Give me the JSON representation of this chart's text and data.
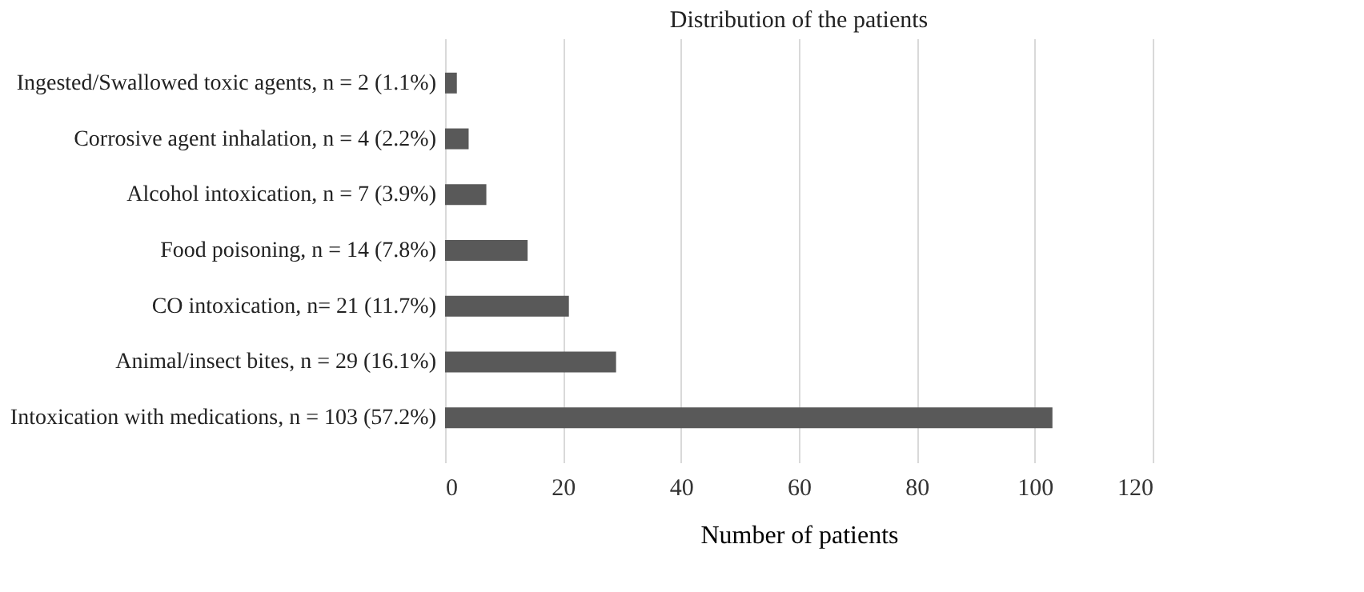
{
  "chart_data": {
    "type": "bar",
    "orientation": "horizontal",
    "title": "Distribution of the patients",
    "xlabel": "Number of patients",
    "categories": [
      "Ingested/Swallowed toxic agents, n = 2 (1.1%)",
      "Corrosive agent inhalation, n = 4 (2.2%)",
      "Alcohol intoxication, n = 7 (3.9%)",
      "Food poisoning, n = 14 (7.8%)",
      "CO intoxication, n= 21 (11.7%)",
      "Animal/insect bites, n = 29 (16.1%)",
      "Intoxication with medications, n = 103 (57.2%)"
    ],
    "values": [
      2,
      4,
      7,
      14,
      21,
      29,
      103
    ],
    "color": "#595959",
    "xlim": [
      0,
      120
    ],
    "xticks": [
      0,
      20,
      40,
      60,
      80,
      100,
      120
    ],
    "grid": "x"
  }
}
